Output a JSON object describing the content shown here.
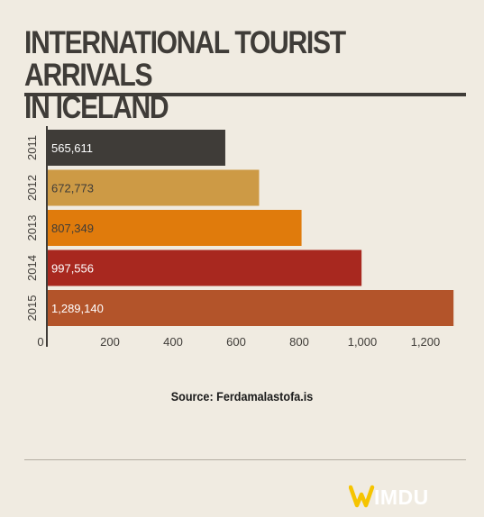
{
  "chart_data": {
    "type": "bar",
    "orientation": "horizontal",
    "title_lines": [
      "INTERNATIONAL TOURIST ARRIVALS",
      "IN ICELAND"
    ],
    "categories": [
      "2011",
      "2012",
      "2013",
      "2014",
      "2015"
    ],
    "values": [
      565611,
      672773,
      807349,
      997556,
      1289140
    ],
    "value_labels": [
      "565,611",
      "672,773",
      "807,349",
      "997,556",
      "1,289,140"
    ],
    "x_ticks": [
      0,
      200,
      400,
      600,
      800,
      1000,
      1200
    ],
    "x_tick_labels": [
      "0",
      "200",
      "400",
      "600",
      "800",
      "1,000",
      "1,200"
    ],
    "xlim": [
      0,
      1300
    ],
    "bar_colors": [
      "#3f3c38",
      "#cd9a45",
      "#e07b0c",
      "#a8281f",
      "#b3542a"
    ],
    "label_colors": [
      "#ffffff",
      "#3f3c38",
      "#3f3c38",
      "#ffffff",
      "#ffffff"
    ],
    "grid": false,
    "legend": "none",
    "source": "Source: Ferdamalastofa.is"
  },
  "brand": {
    "logo_text": "WIMDU",
    "logo_colors": [
      "#f5c400",
      "#ffffff"
    ]
  }
}
